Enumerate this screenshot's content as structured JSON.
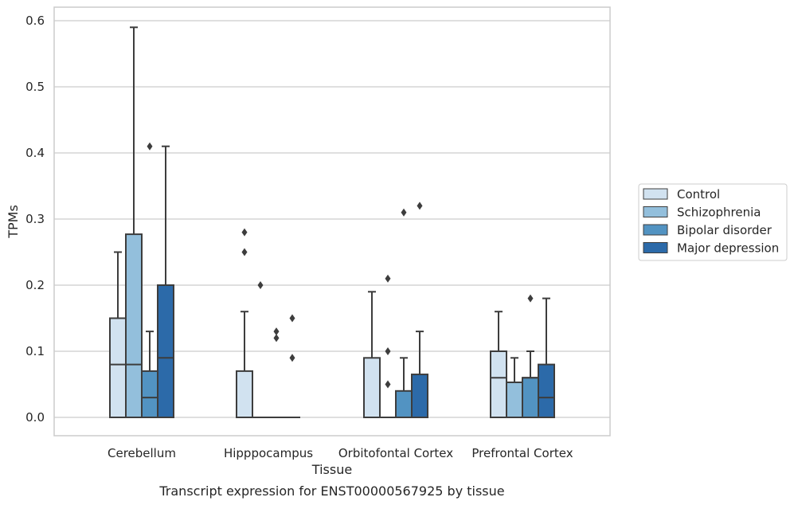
{
  "chart_data": {
    "type": "box",
    "xlabel": "Tissue",
    "ylabel": "TPMs",
    "caption": "Transcript expression for ENST00000567925 by tissue",
    "ylim": [
      -0.028,
      0.62
    ],
    "yticks": [
      0.0,
      0.1,
      0.2,
      0.3,
      0.4,
      0.5,
      0.6
    ],
    "ytick_labels": [
      "0.0",
      "0.1",
      "0.2",
      "0.3",
      "0.4",
      "0.5",
      "0.6"
    ],
    "grid": "horizontal",
    "legend_position": "right",
    "categories": [
      "Cerebellum",
      "Hipppocampus",
      "Orbitofontal Cortex",
      "Prefrontal Cortex"
    ],
    "series": [
      {
        "name": "Control",
        "color": "#d1e2f0",
        "boxes": [
          {
            "whislo": 0.0,
            "q1": 0.0,
            "med": 0.08,
            "q3": 0.15,
            "whishi": 0.25,
            "fliers": []
          },
          {
            "whislo": 0.0,
            "q1": 0.0,
            "med": 0.0,
            "q3": 0.07,
            "whishi": 0.16,
            "fliers": [
              0.25,
              0.28
            ]
          },
          {
            "whislo": 0.0,
            "q1": 0.0,
            "med": 0.0,
            "q3": 0.09,
            "whishi": 0.19,
            "fliers": []
          },
          {
            "whislo": 0.0,
            "q1": 0.0,
            "med": 0.06,
            "q3": 0.1,
            "whishi": 0.16,
            "fliers": []
          }
        ]
      },
      {
        "name": "Schizophrenia",
        "color": "#93bfdc",
        "boxes": [
          {
            "whislo": 0.0,
            "q1": 0.0,
            "med": 0.08,
            "q3": 0.277,
            "whishi": 0.59,
            "fliers": []
          },
          {
            "whislo": 0.0,
            "q1": 0.0,
            "med": 0.0,
            "q3": 0.0,
            "whishi": 0.0,
            "fliers": [
              0.2
            ]
          },
          {
            "whislo": 0.0,
            "q1": 0.0,
            "med": 0.0,
            "q3": 0.0,
            "whishi": 0.0,
            "fliers": [
              0.05,
              0.1,
              0.21
            ]
          },
          {
            "whislo": 0.0,
            "q1": 0.0,
            "med": 0.053,
            "q3": 0.053,
            "whishi": 0.09,
            "fliers": []
          }
        ]
      },
      {
        "name": "Bipolar disorder",
        "color": "#5293c2",
        "boxes": [
          {
            "whislo": 0.0,
            "q1": 0.0,
            "med": 0.03,
            "q3": 0.07,
            "whishi": 0.13,
            "fliers": [
              0.41
            ]
          },
          {
            "whislo": 0.0,
            "q1": 0.0,
            "med": 0.0,
            "q3": 0.0,
            "whishi": 0.0,
            "fliers": [
              0.12,
              0.13
            ]
          },
          {
            "whislo": 0.0,
            "q1": 0.0,
            "med": 0.0,
            "q3": 0.04,
            "whishi": 0.09,
            "fliers": [
              0.31
            ]
          },
          {
            "whislo": 0.0,
            "q1": 0.0,
            "med": 0.06,
            "q3": 0.06,
            "whishi": 0.1,
            "fliers": [
              0.18
            ]
          }
        ]
      },
      {
        "name": "Major depression",
        "color": "#2c6aa9",
        "boxes": [
          {
            "whislo": 0.0,
            "q1": 0.0,
            "med": 0.09,
            "q3": 0.2,
            "whishi": 0.41,
            "fliers": []
          },
          {
            "whislo": 0.0,
            "q1": 0.0,
            "med": 0.0,
            "q3": 0.0,
            "whishi": 0.0,
            "fliers": [
              0.09,
              0.15
            ]
          },
          {
            "whislo": 0.0,
            "q1": 0.0,
            "med": 0.0,
            "q3": 0.065,
            "whishi": 0.13,
            "fliers": [
              0.32
            ]
          },
          {
            "whislo": 0.0,
            "q1": 0.0,
            "med": 0.03,
            "q3": 0.08,
            "whishi": 0.18,
            "fliers": []
          }
        ]
      }
    ]
  }
}
